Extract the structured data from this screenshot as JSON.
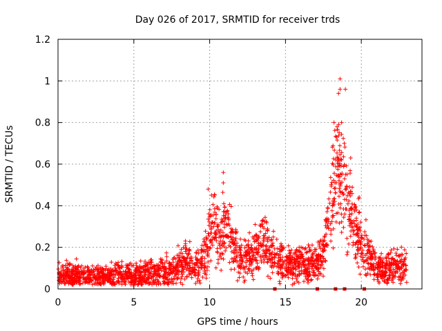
{
  "chart_data": {
    "type": "scatter",
    "title": "Day 026 of 2017, SRMTID for receiver trds",
    "xlabel": "GPS time / hours",
    "ylabel": "SRMTID / TECUs",
    "xlim": [
      0,
      24
    ],
    "ylim": [
      0,
      1.2
    ],
    "grid": true,
    "marker": "+",
    "series_color": "#ff0000",
    "x_ticks": [
      0,
      5,
      10,
      15,
      20
    ],
    "x_tick_labels": [
      "0",
      "5",
      "10",
      "15",
      "20"
    ],
    "y_ticks": [
      0,
      0.2,
      0.4,
      0.6,
      0.8,
      1.0,
      1.2
    ],
    "y_tick_labels": [
      "0",
      "0.2",
      "0.4",
      "0.6",
      "0.8",
      "1",
      "1.2"
    ],
    "profile": {
      "x": [
        0,
        1,
        2,
        3,
        4,
        5,
        6,
        7,
        7.5,
        8,
        8.5,
        9,
        9.5,
        10,
        10.3,
        10.6,
        11,
        11.3,
        11.6,
        12,
        12.5,
        13,
        13.5,
        14,
        14.5,
        15,
        15.5,
        16,
        16.5,
        17,
        17.5,
        18,
        18.3,
        18.5,
        18.8,
        19,
        19.3,
        19.6,
        20,
        20.5,
        21,
        21.5,
        22,
        22.5,
        23
      ],
      "y": [
        0.06,
        0.07,
        0.06,
        0.06,
        0.06,
        0.06,
        0.07,
        0.08,
        0.09,
        0.11,
        0.13,
        0.11,
        0.12,
        0.25,
        0.32,
        0.22,
        0.3,
        0.28,
        0.18,
        0.14,
        0.15,
        0.17,
        0.24,
        0.2,
        0.12,
        0.11,
        0.12,
        0.13,
        0.12,
        0.11,
        0.18,
        0.45,
        0.6,
        0.6,
        0.5,
        0.42,
        0.4,
        0.3,
        0.22,
        0.17,
        0.1,
        0.09,
        0.1,
        0.11,
        0.1
      ]
    },
    "highlighted_points": [
      {
        "x": 10.9,
        "y": 0.56
      },
      {
        "x": 10.9,
        "y": 0.51
      },
      {
        "x": 18.2,
        "y": 0.8
      },
      {
        "x": 18.4,
        "y": 0.78
      },
      {
        "x": 18.6,
        "y": 1.01
      },
      {
        "x": 18.6,
        "y": 0.96
      },
      {
        "x": 18.5,
        "y": 0.94
      },
      {
        "x": 18.95,
        "y": 0.96
      },
      {
        "x": 18.7,
        "y": 0.8
      },
      {
        "x": 19.3,
        "y": 0.63
      },
      {
        "x": 9.9,
        "y": 0.48
      },
      {
        "x": 13.0,
        "y": 0.31
      }
    ],
    "zero_markers_x": [
      14.3,
      17.1,
      18.3,
      18.9,
      20.2
    ]
  }
}
